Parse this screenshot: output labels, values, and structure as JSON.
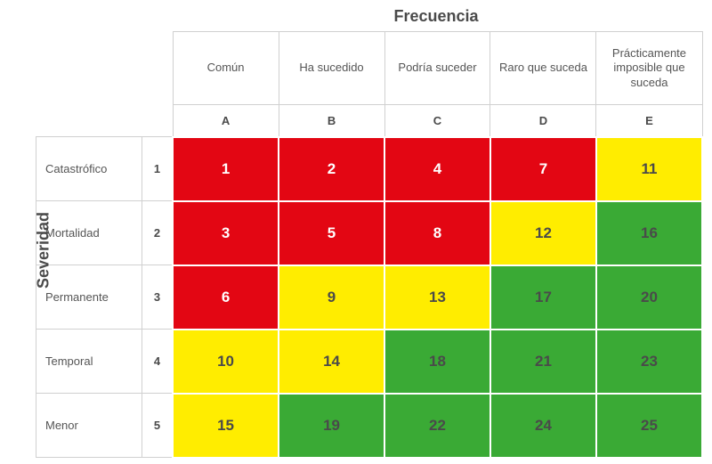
{
  "axes": {
    "x_title": "Frecuencia",
    "y_title": "Severidad"
  },
  "frequency": {
    "labels": [
      "Común",
      "Ha sucedido",
      "Podría suceder",
      "Raro que suceda",
      "Prácticamente imposible que suceda"
    ],
    "codes": [
      "A",
      "B",
      "C",
      "D",
      "E"
    ]
  },
  "severity": {
    "labels": [
      "Catastrófico",
      "Mortalidad",
      "Permanente",
      "Temporal",
      "Menor"
    ],
    "codes": [
      "1",
      "2",
      "3",
      "4",
      "5"
    ]
  },
  "matrix": {
    "type": "heatmap",
    "values": [
      [
        1,
        2,
        4,
        7,
        11
      ],
      [
        3,
        5,
        8,
        12,
        16
      ],
      [
        6,
        9,
        13,
        17,
        20
      ],
      [
        10,
        14,
        18,
        21,
        23
      ],
      [
        15,
        19,
        22,
        24,
        25
      ]
    ],
    "cell_colors": [
      [
        "#e30613",
        "#e30613",
        "#e30613",
        "#e30613",
        "#ffed00"
      ],
      [
        "#e30613",
        "#e30613",
        "#e30613",
        "#ffed00",
        "#3aaa35"
      ],
      [
        "#e30613",
        "#ffed00",
        "#ffed00",
        "#3aaa35",
        "#3aaa35"
      ],
      [
        "#ffed00",
        "#ffed00",
        "#3aaa35",
        "#3aaa35",
        "#3aaa35"
      ],
      [
        "#ffed00",
        "#3aaa35",
        "#3aaa35",
        "#3aaa35",
        "#3aaa35"
      ]
    ],
    "text_colors": [
      [
        "light",
        "light",
        "light",
        "light",
        "dark"
      ],
      [
        "light",
        "light",
        "light",
        "dark",
        "dark"
      ],
      [
        "light",
        "dark",
        "dark",
        "dark",
        "dark"
      ],
      [
        "dark",
        "dark",
        "dark",
        "dark",
        "dark"
      ],
      [
        "dark",
        "dark",
        "dark",
        "dark",
        "dark"
      ]
    ]
  },
  "style": {
    "grid_border_color": "#d0d0d0",
    "cell_border_color": "#ffffff",
    "background_color": "#ffffff",
    "axis_title_fontsize": 18,
    "axis_title_color": "#4a4a4a",
    "header_label_fontsize": 13,
    "header_label_color": "#555555",
    "code_fontsize": 13,
    "code_fontweight": 700,
    "cell_value_fontsize": 17,
    "cell_value_fontweight": 700,
    "text_light": "#ffffff",
    "text_dark": "#4a4a4a"
  }
}
